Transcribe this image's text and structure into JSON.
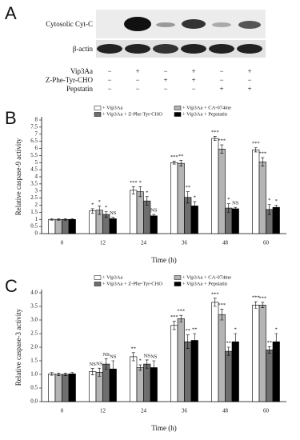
{
  "blot": {
    "panel": "A",
    "rows": [
      "Cytosolic Cyt-C",
      "β-actin"
    ],
    "treatments": [
      {
        "name": "Vip3Aa",
        "signs": [
          "−",
          "+",
          "−",
          "+",
          "−",
          "+"
        ]
      },
      {
        "name": "Z-Phe-Tyr-CHO",
        "signs": [
          "−",
          "−",
          "+",
          "+",
          "−",
          "−"
        ]
      },
      {
        "name": "Pepstatin",
        "signs": [
          "−",
          "−",
          "−",
          "−",
          "+",
          "+"
        ]
      }
    ]
  },
  "chart_data": [
    {
      "type": "bar",
      "panel": "B",
      "x_label": "Time (h)",
      "y_label": "Relative caspase-9 activity",
      "categories": [
        "0",
        "12",
        "24",
        "36",
        "48",
        "60"
      ],
      "ylim": [
        0,
        8
      ],
      "yticks": [
        0,
        0.5,
        1,
        1.5,
        2,
        2.5,
        3,
        3.5,
        4,
        4.5,
        5,
        5.5,
        6,
        6.5,
        7,
        7.5,
        8
      ],
      "series": [
        {
          "name": "+ Vip3Aa",
          "color": "#ffffff",
          "values": [
            1,
            1.6,
            3.05,
            5.0,
            6.7,
            5.9
          ],
          "errors": [
            0.05,
            0.15,
            0.25,
            0.1,
            0.15,
            0.15
          ],
          "labels": [
            null,
            "*",
            "***",
            "***",
            "***",
            "***"
          ]
        },
        {
          "name": "+ Vip3Aa + CA-074me",
          "color": "#b4b4b4",
          "values": [
            1,
            1.65,
            2.95,
            4.95,
            5.95,
            5.05
          ],
          "errors": [
            0.05,
            0.3,
            0.35,
            0.2,
            0.3,
            0.3
          ],
          "labels": [
            null,
            "*",
            "*",
            "**",
            "***",
            "***"
          ]
        },
        {
          "name": "+ Vip3Aa + Z-Phe-Tyr-CHO",
          "color": "#6e6e6e",
          "values": [
            1,
            1.35,
            2.3,
            2.55,
            1.8,
            1.7
          ],
          "errors": [
            0.05,
            0.2,
            0.3,
            0.4,
            0.3,
            0.35
          ],
          "labels": [
            null,
            "*",
            "*",
            "**",
            "*",
            "*"
          ]
        },
        {
          "name": "+ Vip3Aa + Pepstatin",
          "color": "#000000",
          "values": [
            1,
            1.05,
            1.25,
            1.95,
            1.75,
            1.85
          ],
          "errors": [
            0.05,
            0.1,
            0.1,
            0.3,
            0.1,
            0.15
          ],
          "labels": [
            null,
            "NS",
            "NS",
            "*",
            "NS",
            "*"
          ]
        }
      ]
    },
    {
      "type": "bar",
      "panel": "C",
      "x_label": "Time (h)",
      "y_label": "Relative caspase-3 activity",
      "categories": [
        "0",
        "12",
        "24",
        "36",
        "48",
        "60"
      ],
      "ylim": [
        0,
        4
      ],
      "yticks": [
        {
          "value": 0,
          "label": "0.0"
        },
        0.5,
        {
          "value": 1,
          "label": "1.0"
        },
        1.5,
        {
          "value": 2,
          "label": "2.0"
        },
        2.5,
        {
          "value": 3,
          "label": "3.0"
        },
        3.5,
        {
          "value": 4,
          "label": "4.0"
        }
      ],
      "series": [
        {
          "name": "+ Vip3Aa",
          "color": "#ffffff",
          "values": [
            1.02,
            1.1,
            1.65,
            2.8,
            3.65,
            3.55
          ],
          "errors": [
            0.05,
            0.12,
            0.15,
            0.15,
            0.15,
            0.12
          ],
          "labels": [
            null,
            "NS",
            "**",
            "***",
            "***",
            "***"
          ]
        },
        {
          "name": "+ Vip3Aa + CA-074me",
          "color": "#b4b4b4",
          "values": [
            1.0,
            1.08,
            1.25,
            3.05,
            3.2,
            3.55
          ],
          "errors": [
            0.05,
            0.15,
            0.1,
            0.12,
            0.2,
            0.1
          ],
          "labels": [
            null,
            "NS",
            "*",
            "***",
            "***",
            "***"
          ]
        },
        {
          "name": "+ Vip3Aa + Z-Phe-Tyr-CHO",
          "color": "#6e6e6e",
          "values": [
            1.0,
            1.38,
            1.38,
            2.2,
            1.85,
            1.9
          ],
          "errors": [
            0.05,
            0.2,
            0.15,
            0.25,
            0.15,
            0.12
          ],
          "labels": [
            null,
            "NS",
            "NS",
            "**",
            "**",
            "**"
          ]
        },
        {
          "name": "+ Vip3Aa + Pepstatin",
          "color": "#000000",
          "values": [
            1.02,
            1.2,
            1.25,
            2.25,
            2.2,
            2.2
          ],
          "errors": [
            0.05,
            0.3,
            0.25,
            0.25,
            0.3,
            0.3
          ],
          "labels": [
            null,
            "NS",
            "NS",
            "**",
            "*",
            "*"
          ]
        }
      ]
    }
  ]
}
